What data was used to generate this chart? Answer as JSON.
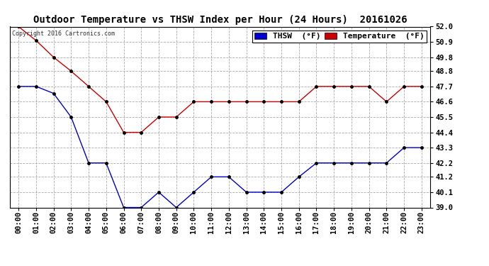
{
  "title": "Outdoor Temperature vs THSW Index per Hour (24 Hours)  20161026",
  "copyright": "Copyright 2016 Cartronics.com",
  "x_labels": [
    "00:00",
    "01:00",
    "02:00",
    "03:00",
    "04:00",
    "05:00",
    "06:00",
    "07:00",
    "08:00",
    "09:00",
    "10:00",
    "11:00",
    "12:00",
    "13:00",
    "14:00",
    "15:00",
    "16:00",
    "17:00",
    "18:00",
    "19:00",
    "20:00",
    "21:00",
    "22:00",
    "23:00"
  ],
  "thsw": [
    47.7,
    47.7,
    47.2,
    45.5,
    42.2,
    42.2,
    39.0,
    39.0,
    40.1,
    39.0,
    40.1,
    41.2,
    41.2,
    40.1,
    40.1,
    40.1,
    41.2,
    42.2,
    42.2,
    42.2,
    42.2,
    42.2,
    43.3,
    43.3
  ],
  "temperature": [
    52.0,
    51.0,
    49.8,
    48.8,
    47.7,
    46.6,
    44.4,
    44.4,
    45.5,
    45.5,
    46.6,
    46.6,
    46.6,
    46.6,
    46.6,
    46.6,
    46.6,
    47.7,
    47.7,
    47.7,
    47.7,
    46.6,
    47.7,
    47.7
  ],
  "thsw_color": "#0000cc",
  "temp_color": "#cc0000",
  "thsw_label": "THSW  (°F)",
  "temp_label": "Temperature  (°F)",
  "ylim_min": 39.0,
  "ylim_max": 52.0,
  "yticks": [
    39.0,
    40.1,
    41.2,
    42.2,
    43.3,
    44.4,
    45.5,
    46.6,
    47.7,
    48.8,
    49.8,
    50.9,
    52.0
  ],
  "bg_color": "#ffffff",
  "grid_color": "#aaaaaa",
  "title_fontsize": 10,
  "tick_fontsize": 7.5,
  "legend_fontsize": 8
}
